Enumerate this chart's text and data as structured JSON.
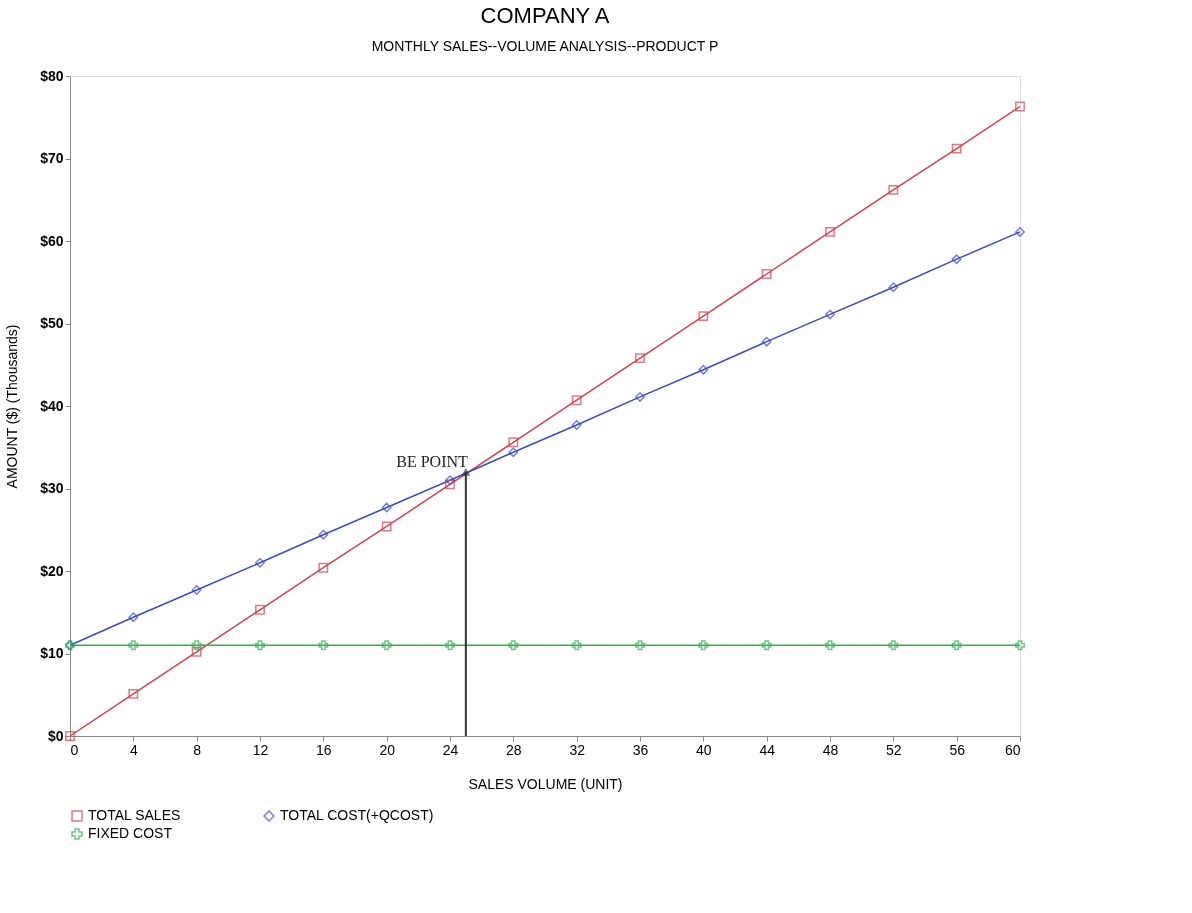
{
  "chart_data": {
    "type": "line",
    "title": "COMPANY A",
    "subtitle": "MONTHLY SALES--VOLUME ANALYSIS--PRODUCT P",
    "xlabel": "SALES VOLUME (UNIT)",
    "ylabel": "AMOUNT ($) (Thousands)",
    "x": [
      0,
      4,
      8,
      12,
      16,
      20,
      24,
      28,
      32,
      36,
      40,
      44,
      48,
      52,
      56,
      60
    ],
    "series": [
      {
        "name": "TOTAL SALES",
        "color": "#d2434f",
        "marker": "square",
        "values": [
          0,
          5.1,
          10.2,
          15.3,
          20.4,
          25.4,
          30.5,
          35.6,
          40.7,
          45.8,
          50.9,
          56.0,
          61.1,
          66.2,
          71.2,
          76.3
        ]
      },
      {
        "name": "TOTAL COST(+QCOST)",
        "color": "#3a4cc0",
        "marker": "diamond",
        "values": [
          11.0,
          14.4,
          17.7,
          21.0,
          24.4,
          27.7,
          31.0,
          34.4,
          37.7,
          41.1,
          44.4,
          47.8,
          51.1,
          54.4,
          57.8,
          61.1
        ]
      },
      {
        "name": "FIXED COST",
        "color": "#2bb34a",
        "marker": "cross",
        "values": [
          11,
          11,
          11,
          11,
          11,
          11,
          11,
          11,
          11,
          11,
          11,
          11,
          11,
          11,
          11,
          11
        ]
      }
    ],
    "xlim": [
      0,
      60
    ],
    "xticks": [
      0,
      4,
      8,
      12,
      16,
      20,
      24,
      28,
      32,
      36,
      40,
      44,
      48,
      52,
      56,
      60
    ],
    "ylim": [
      0,
      80
    ],
    "yticks": [
      {
        "value": 0,
        "label": "$0"
      },
      {
        "value": 10,
        "label": "$10"
      },
      {
        "value": 20,
        "label": "$20"
      },
      {
        "value": 30,
        "label": "$30"
      },
      {
        "value": 40,
        "label": "$40"
      },
      {
        "value": 50,
        "label": "$50"
      },
      {
        "value": 60,
        "label": "$60"
      },
      {
        "value": 70,
        "label": "$70"
      },
      {
        "value": 80,
        "label": "$80"
      }
    ],
    "annotations": [
      {
        "text": "BE POINT",
        "x": 25,
        "y": 32
      }
    ],
    "legend": "bottom"
  }
}
